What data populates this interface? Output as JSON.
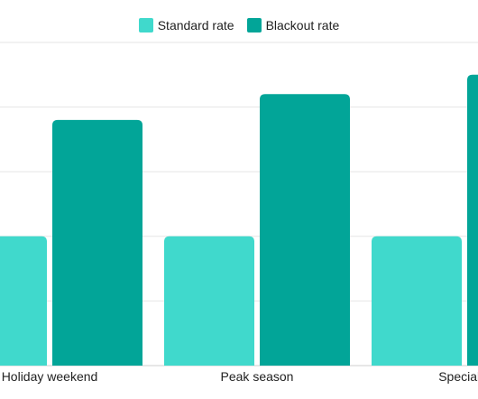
{
  "legend": {
    "items": [
      {
        "label": "Standard rate",
        "color": "#40d9cc"
      },
      {
        "label": "Blackout rate",
        "color": "#02a598"
      }
    ]
  },
  "chart_data": {
    "type": "bar",
    "categories": [
      "Holiday weekend",
      "Peak season",
      "Special e"
    ],
    "series": [
      {
        "name": "Standard rate",
        "color": "#40d9cc",
        "values": [
          100,
          100,
          100
        ]
      },
      {
        "name": "Blackout rate",
        "color": "#02a598",
        "values": [
          190,
          210,
          225
        ]
      }
    ],
    "title": "",
    "xlabel": "",
    "ylabel": "",
    "ylim": [
      0,
      250
    ],
    "grid": true,
    "legend_position": "top-center"
  }
}
